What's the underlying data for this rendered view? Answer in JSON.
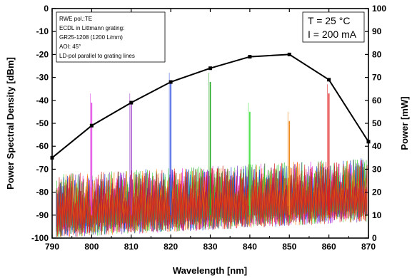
{
  "chart_data": {
    "type": "line",
    "xlabel": "Wavelength [nm]",
    "ylabel_left": "Power Spectral Density [dBm]",
    "ylabel_right": "Power [mW]",
    "xlim": [
      790,
      870
    ],
    "ylim_left": [
      -100,
      0
    ],
    "ylim_right": [
      0,
      100
    ],
    "x_ticks": [
      "790",
      "800",
      "810",
      "820",
      "830",
      "840",
      "850",
      "860",
      "870"
    ],
    "y_left_ticks": [
      "-100",
      "-90",
      "-80",
      "-70",
      "-60",
      "-50",
      "-40",
      "-30",
      "-20",
      "-10",
      "0"
    ],
    "y_right_ticks": [
      "0",
      "10",
      "20",
      "30",
      "40",
      "50",
      "60",
      "70",
      "80",
      "90",
      "100"
    ],
    "grid": false,
    "info_box": [
      "RWE pol.:TE",
      "ECDL in Littmann grating:",
      "GR25-1208 (1200 L/mm)",
      "AOI: 45°",
      "LD-pol parallel to grating lines"
    ],
    "conditions": [
      "T = 25 °C",
      "I = 200 mA"
    ],
    "power_series": {
      "axis": "right",
      "color": "#000000",
      "marker": "square",
      "x": [
        790,
        800,
        810,
        820,
        830,
        840,
        850,
        860,
        870
      ],
      "y": [
        35,
        49,
        59,
        68,
        74,
        79,
        80,
        69,
        42
      ]
    },
    "spectra": [
      {
        "peak_x": 800,
        "peak_dbm": -41,
        "color": "#e040e0"
      },
      {
        "peak_x": 810,
        "peak_dbm": -41,
        "color": "#9a3cc8"
      },
      {
        "peak_x": 820,
        "peak_dbm": -32,
        "color": "#3050e0"
      },
      {
        "peak_x": 830,
        "peak_dbm": -32,
        "color": "#22a822"
      },
      {
        "peak_x": 840,
        "peak_dbm": -45,
        "color": "#40e040"
      },
      {
        "peak_x": 850,
        "peak_dbm": -49,
        "color": "#f08a20"
      },
      {
        "peak_x": 860,
        "peak_dbm": -37,
        "color": "#e02020"
      }
    ],
    "noise_floor_colors": [
      "#7030c0",
      "#e030e0",
      "#40d040",
      "#30c030",
      "#1030d0",
      "#e02020",
      "#ff7a00",
      "#d01818"
    ]
  }
}
